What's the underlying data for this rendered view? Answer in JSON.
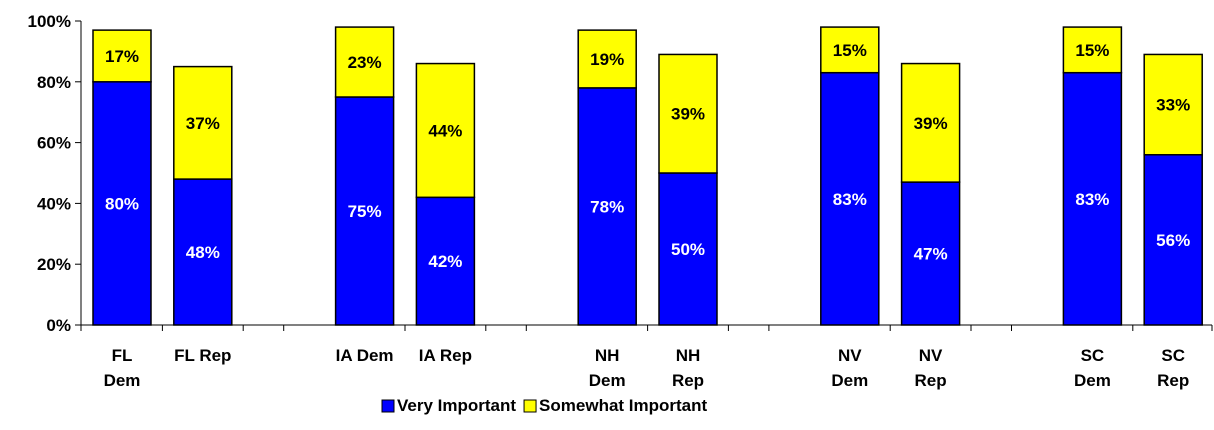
{
  "chart_data": {
    "type": "bar",
    "stacked": true,
    "categories": [
      [
        "FL",
        "Dem"
      ],
      [
        "FL Rep"
      ],
      [
        "IA Dem"
      ],
      [
        "IA  Rep"
      ],
      [
        "NH",
        "Dem"
      ],
      [
        "NH",
        "Rep"
      ],
      [
        "NV",
        "Dem"
      ],
      [
        "NV",
        "Rep"
      ],
      [
        "SC",
        "Dem"
      ],
      [
        "SC",
        "Rep"
      ]
    ],
    "series": [
      {
        "name": "Very Important",
        "color": "#0000ff",
        "label_color": "#ffffff",
        "values": [
          80,
          48,
          75,
          42,
          78,
          50,
          83,
          47,
          83,
          56
        ],
        "labels": [
          "80%",
          "48%",
          "75%",
          "42%",
          "78%",
          "50%",
          "83%",
          "47%",
          "83%",
          "56%"
        ]
      },
      {
        "name": "Somewhat Important",
        "color": "#ffff00",
        "label_color": "#000000",
        "values": [
          17,
          37,
          23,
          44,
          19,
          39,
          15,
          39,
          15,
          33
        ],
        "labels": [
          "17%",
          "37%",
          "23%",
          "44%",
          "19%",
          "39%",
          "15%",
          "39%",
          "15%",
          "33%"
        ]
      }
    ],
    "ylim": [
      0,
      100
    ],
    "yticks": [
      "0%",
      "20%",
      "40%",
      "60%",
      "80%",
      "100%"
    ],
    "grid": false,
    "legend_position": "bottom",
    "xlabel": "",
    "ylabel": ""
  }
}
